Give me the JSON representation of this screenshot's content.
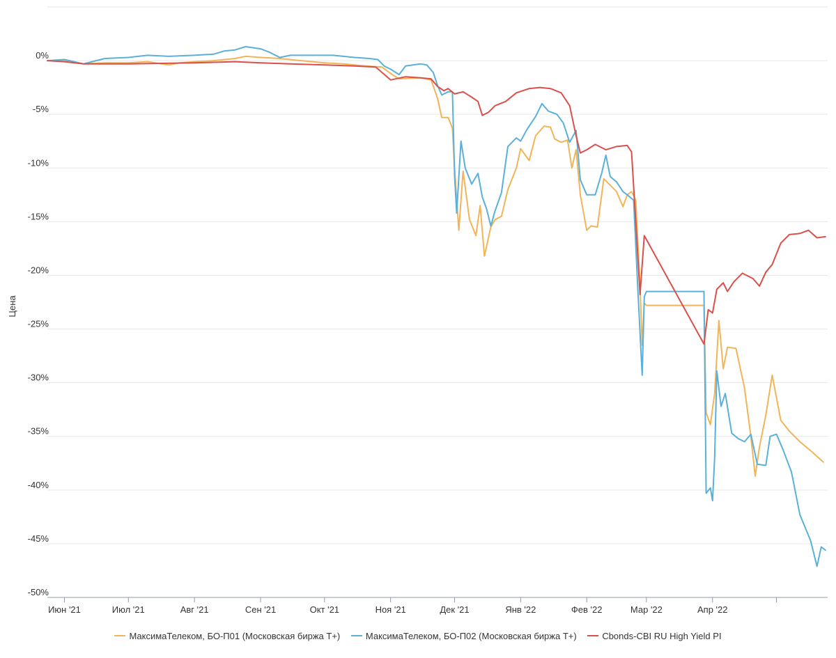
{
  "chart_data": {
    "type": "line",
    "ylabel": "Цена",
    "ylim": [
      -50,
      5
    ],
    "y_ticks": [
      {
        "value": 0,
        "label": "0%"
      },
      {
        "value": -5,
        "label": "-5%"
      },
      {
        "value": -10,
        "label": "-10%"
      },
      {
        "value": -15,
        "label": "-15%"
      },
      {
        "value": -20,
        "label": "-20%"
      },
      {
        "value": -25,
        "label": "-25%"
      },
      {
        "value": -30,
        "label": "-30%"
      },
      {
        "value": -35,
        "label": "-35%"
      },
      {
        "value": -40,
        "label": "-40%"
      },
      {
        "value": -45,
        "label": "-45%"
      },
      {
        "value": -50,
        "label": "-50%"
      }
    ],
    "xlim": [
      "2021-05-24",
      "2022-05-25"
    ],
    "x_ticks": [
      {
        "date": "2021-06-01",
        "label": "Июн '21"
      },
      {
        "date": "2021-07-01",
        "label": "Июл '21"
      },
      {
        "date": "2021-08-01",
        "label": "Авг '21"
      },
      {
        "date": "2021-09-01",
        "label": "Сен '21"
      },
      {
        "date": "2021-10-01",
        "label": "Окт '21"
      },
      {
        "date": "2021-11-01",
        "label": "Ноя '21"
      },
      {
        "date": "2021-12-01",
        "label": "Дек '21"
      },
      {
        "date": "2022-01-01",
        "label": "Янв '22"
      },
      {
        "date": "2022-02-01",
        "label": "Фев '22"
      },
      {
        "date": "2022-03-01",
        "label": "Мар '22"
      },
      {
        "date": "2022-04-01",
        "label": "Апр '22"
      },
      {
        "date": "2022-05-01",
        "label": ""
      }
    ],
    "grid": "horizontal",
    "legend": "bottom",
    "series": [
      {
        "name": "МаксимаТелеком, БО-П01 (Московская биржа T+)",
        "color": "#f2b457",
        "points": [
          [
            "2021-05-24",
            0
          ],
          [
            "2021-06-01",
            0
          ],
          [
            "2021-06-10",
            -0.3
          ],
          [
            "2021-06-20",
            -0.2
          ],
          [
            "2021-07-01",
            -0.2
          ],
          [
            "2021-07-10",
            -0.1
          ],
          [
            "2021-07-20",
            -0.4
          ],
          [
            "2021-07-25",
            -0.2
          ],
          [
            "2021-08-01",
            -0.1
          ],
          [
            "2021-08-10",
            0
          ],
          [
            "2021-08-20",
            0.2
          ],
          [
            "2021-08-25",
            0.4
          ],
          [
            "2021-09-01",
            0.3
          ],
          [
            "2021-09-10",
            0.2
          ],
          [
            "2021-09-20",
            0
          ],
          [
            "2021-10-01",
            -0.2
          ],
          [
            "2021-10-10",
            -0.3
          ],
          [
            "2021-10-20",
            -0.5
          ],
          [
            "2021-10-28",
            -0.6
          ],
          [
            "2021-11-01",
            -1.2
          ],
          [
            "2021-11-05",
            -1.7
          ],
          [
            "2021-11-15",
            -1.6
          ],
          [
            "2021-11-20",
            -1.8
          ],
          [
            "2021-11-23",
            -3.5
          ],
          [
            "2021-11-25",
            -5.3
          ],
          [
            "2021-11-28",
            -5.3
          ],
          [
            "2021-11-30",
            -6.3
          ],
          [
            "2021-12-01",
            -10
          ],
          [
            "2021-12-03",
            -15.8
          ],
          [
            "2021-12-05",
            -10.3
          ],
          [
            "2021-12-08",
            -14.8
          ],
          [
            "2021-12-11",
            -16.3
          ],
          [
            "2021-12-13",
            -13.5
          ],
          [
            "2021-12-15",
            -18.2
          ],
          [
            "2021-12-18",
            -15.5
          ],
          [
            "2021-12-20",
            -14.8
          ],
          [
            "2021-12-23",
            -14.5
          ],
          [
            "2021-12-26",
            -12
          ],
          [
            "2021-12-30",
            -10
          ],
          [
            "2022-01-01",
            -8.2
          ],
          [
            "2022-01-05",
            -9.3
          ],
          [
            "2022-01-08",
            -7
          ],
          [
            "2022-01-12",
            -6.1
          ],
          [
            "2022-01-15",
            -6.2
          ],
          [
            "2022-01-17",
            -7.3
          ],
          [
            "2022-01-20",
            -7.6
          ],
          [
            "2022-01-23",
            -7.4
          ],
          [
            "2022-01-25",
            -10
          ],
          [
            "2022-01-27",
            -8.3
          ],
          [
            "2022-01-29",
            -12.5
          ],
          [
            "2022-02-01",
            -15.8
          ],
          [
            "2022-02-03",
            -15.4
          ],
          [
            "2022-02-06",
            -15.5
          ],
          [
            "2022-02-09",
            -11
          ],
          [
            "2022-02-12",
            -11.6
          ],
          [
            "2022-02-15",
            -12.2
          ],
          [
            "2022-02-18",
            -13.6
          ],
          [
            "2022-02-20",
            -12.5
          ],
          [
            "2022-02-22",
            -12.2
          ],
          [
            "2022-02-24",
            -13
          ],
          [
            "2022-02-26",
            -21
          ],
          [
            "2022-02-27",
            -26.5
          ],
          [
            "2022-02-28",
            -22.6
          ],
          [
            "2022-03-01",
            -22.8
          ],
          [
            "2022-03-28",
            -22.8
          ],
          [
            "2022-03-29",
            -32.8
          ],
          [
            "2022-03-31",
            -33.9
          ],
          [
            "2022-04-02",
            -31
          ],
          [
            "2022-04-04",
            -24.2
          ],
          [
            "2022-04-06",
            -28.7
          ],
          [
            "2022-04-08",
            -26.7
          ],
          [
            "2022-04-12",
            -26.8
          ],
          [
            "2022-04-16",
            -30.5
          ],
          [
            "2022-04-19",
            -35
          ],
          [
            "2022-04-21",
            -38.7
          ],
          [
            "2022-04-23",
            -36
          ],
          [
            "2022-04-26",
            -33
          ],
          [
            "2022-04-29",
            -29.3
          ],
          [
            "2022-05-03",
            -33.5
          ],
          [
            "2022-05-07",
            -34.5
          ],
          [
            "2022-05-12",
            -35.5
          ],
          [
            "2022-05-18",
            -36.5
          ],
          [
            "2022-05-23",
            -37.4
          ]
        ]
      },
      {
        "name": "МаксимаТелеком, БО-П02 (Московская биржа T+)",
        "color": "#5ab0d8",
        "points": [
          [
            "2021-05-24",
            0
          ],
          [
            "2021-06-01",
            0.1
          ],
          [
            "2021-06-10",
            -0.3
          ],
          [
            "2021-06-20",
            0.2
          ],
          [
            "2021-07-01",
            0.3
          ],
          [
            "2021-07-10",
            0.5
          ],
          [
            "2021-07-20",
            0.4
          ],
          [
            "2021-08-01",
            0.5
          ],
          [
            "2021-08-10",
            0.6
          ],
          [
            "2021-08-15",
            0.9
          ],
          [
            "2021-08-20",
            1.0
          ],
          [
            "2021-08-25",
            1.3
          ],
          [
            "2021-09-01",
            1.1
          ],
          [
            "2021-09-05",
            0.8
          ],
          [
            "2021-09-10",
            0.3
          ],
          [
            "2021-09-15",
            0.5
          ],
          [
            "2021-09-25",
            0.5
          ],
          [
            "2021-10-05",
            0.5
          ],
          [
            "2021-10-15",
            0.3
          ],
          [
            "2021-10-22",
            0.2
          ],
          [
            "2021-10-26",
            0.1
          ],
          [
            "2021-10-29",
            -0.5
          ],
          [
            "2021-11-01",
            -0.8
          ],
          [
            "2021-11-05",
            -1.3
          ],
          [
            "2021-11-08",
            -0.5
          ],
          [
            "2021-11-15",
            -0.3
          ],
          [
            "2021-11-18",
            -0.4
          ],
          [
            "2021-11-21",
            -1.1
          ],
          [
            "2021-11-23",
            -2.3
          ],
          [
            "2021-11-25",
            -3.2
          ],
          [
            "2021-11-28",
            -2.9
          ],
          [
            "2021-11-30",
            -2.9
          ],
          [
            "2021-12-01",
            -10.7
          ],
          [
            "2021-12-02",
            -14.2
          ],
          [
            "2021-12-04",
            -7.5
          ],
          [
            "2021-12-06",
            -10
          ],
          [
            "2021-12-09",
            -11.5
          ],
          [
            "2021-12-12",
            -10.5
          ],
          [
            "2021-12-14",
            -12.7
          ],
          [
            "2021-12-16",
            -13.8
          ],
          [
            "2021-12-18",
            -15.4
          ],
          [
            "2021-12-20",
            -14
          ],
          [
            "2021-12-23",
            -12.3
          ],
          [
            "2021-12-26",
            -8
          ],
          [
            "2021-12-30",
            -7.2
          ],
          [
            "2022-01-01",
            -7.5
          ],
          [
            "2022-01-04",
            -6.4
          ],
          [
            "2022-01-08",
            -5.2
          ],
          [
            "2022-01-11",
            -4
          ],
          [
            "2022-01-14",
            -4.7
          ],
          [
            "2022-01-18",
            -5
          ],
          [
            "2022-01-21",
            -5.8
          ],
          [
            "2022-01-24",
            -7.6
          ],
          [
            "2022-01-27",
            -6.5
          ],
          [
            "2022-01-29",
            -11.1
          ],
          [
            "2022-02-01",
            -12.5
          ],
          [
            "2022-02-05",
            -12.5
          ],
          [
            "2022-02-08",
            -10.5
          ],
          [
            "2022-02-10",
            -8.8
          ],
          [
            "2022-02-12",
            -10.8
          ],
          [
            "2022-02-15",
            -11.3
          ],
          [
            "2022-02-18",
            -12.2
          ],
          [
            "2022-02-20",
            -12.5
          ],
          [
            "2022-02-23",
            -13
          ],
          [
            "2022-02-25",
            -21.5
          ],
          [
            "2022-02-27",
            -29.3
          ],
          [
            "2022-02-28",
            -22
          ],
          [
            "2022-03-01",
            -21.5
          ],
          [
            "2022-03-28",
            -21.5
          ],
          [
            "2022-03-29",
            -40.3
          ],
          [
            "2022-03-31",
            -39.8
          ],
          [
            "2022-04-01",
            -41
          ],
          [
            "2022-04-02",
            -37
          ],
          [
            "2022-04-03",
            -28.9
          ],
          [
            "2022-04-05",
            -32.2
          ],
          [
            "2022-04-07",
            -31
          ],
          [
            "2022-04-10",
            -34.7
          ],
          [
            "2022-04-13",
            -35.2
          ],
          [
            "2022-04-16",
            -35.5
          ],
          [
            "2022-04-19",
            -34.8
          ],
          [
            "2022-04-22",
            -37.6
          ],
          [
            "2022-04-26",
            -37.7
          ],
          [
            "2022-04-28",
            -35
          ],
          [
            "2022-05-01",
            -34.8
          ],
          [
            "2022-05-04",
            -36.2
          ],
          [
            "2022-05-08",
            -38.3
          ],
          [
            "2022-05-12",
            -42.3
          ],
          [
            "2022-05-17",
            -44.7
          ],
          [
            "2022-05-20",
            -47.1
          ],
          [
            "2022-05-22",
            -45.3
          ],
          [
            "2022-05-24",
            -45.6
          ]
        ]
      },
      {
        "name": "Cbonds-CBI RU High Yield PI",
        "color": "#d9504a",
        "points": [
          [
            "2021-05-24",
            0
          ],
          [
            "2021-06-01",
            -0.1
          ],
          [
            "2021-06-10",
            -0.3
          ],
          [
            "2021-07-01",
            -0.3
          ],
          [
            "2021-08-01",
            -0.2
          ],
          [
            "2021-08-20",
            -0.1
          ],
          [
            "2021-09-01",
            -0.2
          ],
          [
            "2021-09-15",
            -0.3
          ],
          [
            "2021-10-01",
            -0.4
          ],
          [
            "2021-10-15",
            -0.5
          ],
          [
            "2021-10-25",
            -0.6
          ],
          [
            "2021-11-01",
            -1.8
          ],
          [
            "2021-11-08",
            -1.5
          ],
          [
            "2021-11-15",
            -1.6
          ],
          [
            "2021-11-20",
            -1.7
          ],
          [
            "2021-11-23",
            -2.4
          ],
          [
            "2021-11-26",
            -2.8
          ],
          [
            "2021-11-28",
            -2.6
          ],
          [
            "2021-12-01",
            -3.1
          ],
          [
            "2021-12-05",
            -2.9
          ],
          [
            "2021-12-09",
            -3.4
          ],
          [
            "2021-12-12",
            -3.8
          ],
          [
            "2021-12-14",
            -5.1
          ],
          [
            "2021-12-17",
            -4.8
          ],
          [
            "2021-12-20",
            -4.2
          ],
          [
            "2021-12-25",
            -3.8
          ],
          [
            "2021-12-30",
            -3
          ],
          [
            "2022-01-05",
            -2.6
          ],
          [
            "2022-01-10",
            -2.5
          ],
          [
            "2022-01-15",
            -2.6
          ],
          [
            "2022-01-20",
            -3
          ],
          [
            "2022-01-24",
            -4.2
          ],
          [
            "2022-01-27",
            -7
          ],
          [
            "2022-01-29",
            -8.6
          ],
          [
            "2022-02-01",
            -8.3
          ],
          [
            "2022-02-05",
            -7.8
          ],
          [
            "2022-02-10",
            -8.3
          ],
          [
            "2022-02-15",
            -8
          ],
          [
            "2022-02-20",
            -7.9
          ],
          [
            "2022-02-22",
            -8.5
          ],
          [
            "2022-02-24",
            -15
          ],
          [
            "2022-02-26",
            -21.8
          ],
          [
            "2022-02-28",
            -16.3
          ],
          [
            "2022-03-28",
            -26.4
          ],
          [
            "2022-03-30",
            -23.2
          ],
          [
            "2022-04-01",
            -23.5
          ],
          [
            "2022-04-03",
            -21.3
          ],
          [
            "2022-04-06",
            -20.7
          ],
          [
            "2022-04-08",
            -21.5
          ],
          [
            "2022-04-11",
            -20.6
          ],
          [
            "2022-04-15",
            -19.8
          ],
          [
            "2022-04-20",
            -20.3
          ],
          [
            "2022-04-23",
            -21
          ],
          [
            "2022-04-26",
            -19.7
          ],
          [
            "2022-04-29",
            -19
          ],
          [
            "2022-05-03",
            -17
          ],
          [
            "2022-05-07",
            -16.2
          ],
          [
            "2022-05-12",
            -16.1
          ],
          [
            "2022-05-16",
            -15.8
          ],
          [
            "2022-05-20",
            -16.5
          ],
          [
            "2022-05-24",
            -16.4
          ]
        ]
      }
    ]
  }
}
